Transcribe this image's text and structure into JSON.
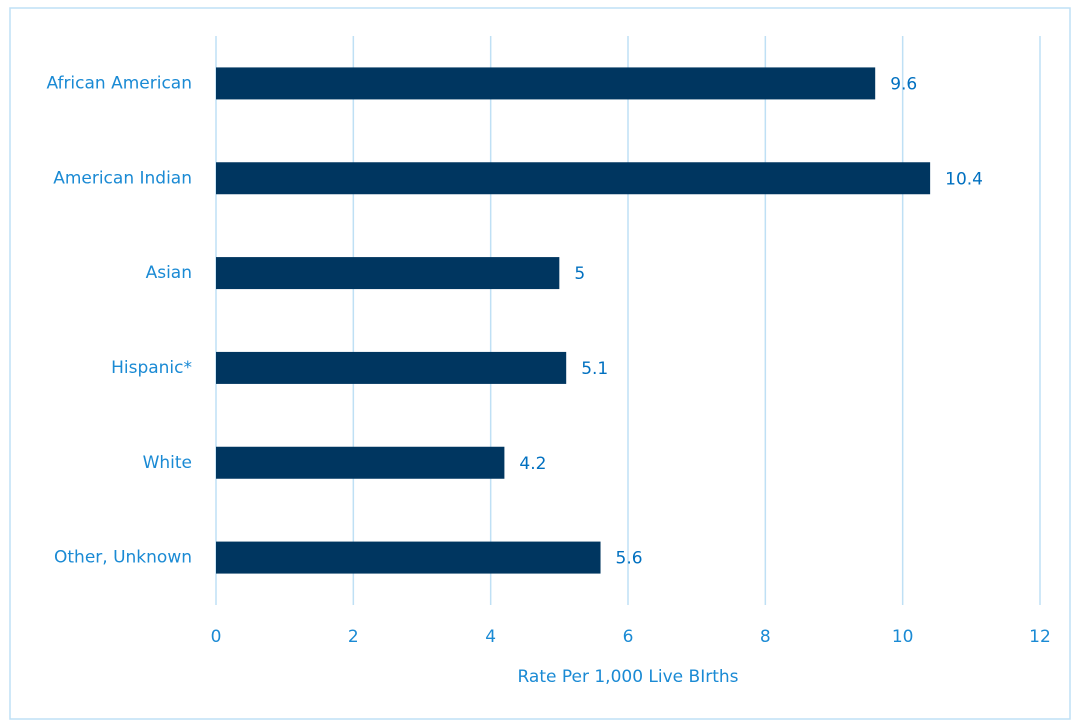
{
  "chart_data": {
    "type": "hbar",
    "x_label": "Rate Per 1,000 Live BIrths",
    "categories": [
      "African American",
      "American Indian",
      "Asian",
      "Hispanic*",
      "White",
      "Other, Unknown"
    ],
    "values": [
      9.6,
      10.4,
      5,
      5.1,
      4.2,
      5.6
    ],
    "color": "#003660",
    "text_color": "#1a8ad4",
    "label_color": "#0070c0",
    "grid_color": "#bfe0f5",
    "xlim": [
      0,
      12
    ],
    "xticks": [
      0,
      2,
      4,
      6,
      8,
      10,
      12
    ],
    "grid": true
  }
}
